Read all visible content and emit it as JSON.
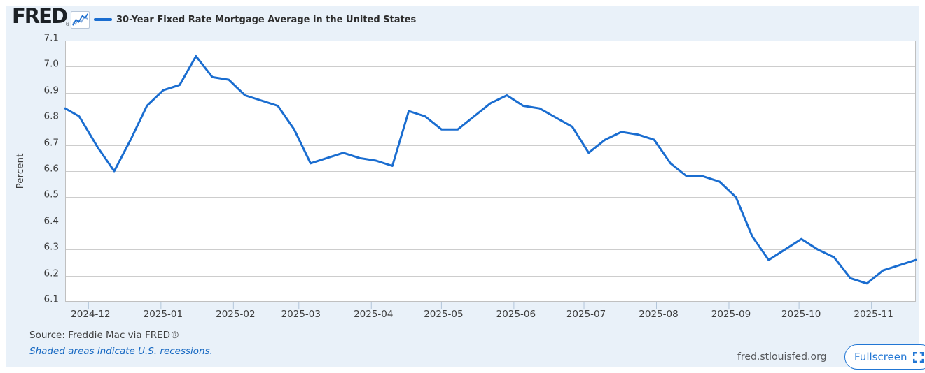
{
  "colors": {
    "accent": "#1a6dd0",
    "link_blue": "#1668c2",
    "button_blue": "#2176d4",
    "panel_bg": "#e9f1f9",
    "gridline": "#cdcdcd",
    "plot_border": "#c0c0c0",
    "tick_mark": "#b3c6da",
    "axis_text": "#3c3c3c"
  },
  "header": {
    "logo_text": "FRED",
    "registered_mark": "®",
    "series_title": "30-Year Fixed Rate Mortgage Average in the United States"
  },
  "chart_data": {
    "type": "line",
    "title": "30-Year Fixed Rate Mortgage Average in the United States",
    "xlabel": "",
    "ylabel": "Percent",
    "ylim": [
      6.1,
      7.1
    ],
    "y_tick_labels": [
      "7.1",
      "7.0",
      "6.9",
      "6.8",
      "6.7",
      "6.6",
      "6.5",
      "6.4",
      "6.3",
      "6.2",
      "6.1"
    ],
    "grid": "horizontal",
    "legend_position": "top",
    "line_color": "#1a6dd0",
    "x_range": [
      "2024-11-21",
      "2025-11-20"
    ],
    "x_ticks": [
      {
        "label": "2024-12",
        "date": "2024-12-01"
      },
      {
        "label": "2025-01",
        "date": "2025-01-01"
      },
      {
        "label": "2025-02",
        "date": "2025-02-01"
      },
      {
        "label": "2025-03",
        "date": "2025-03-01"
      },
      {
        "label": "2025-04",
        "date": "2025-04-01"
      },
      {
        "label": "2025-05",
        "date": "2025-05-01"
      },
      {
        "label": "2025-06",
        "date": "2025-06-01"
      },
      {
        "label": "2025-07",
        "date": "2025-07-01"
      },
      {
        "label": "2025-08",
        "date": "2025-08-01"
      },
      {
        "label": "2025-09",
        "date": "2025-09-01"
      },
      {
        "label": "2025-10",
        "date": "2025-10-01"
      },
      {
        "label": "2025-11",
        "date": "2025-11-01"
      }
    ],
    "series": [
      {
        "name": "30-Year Fixed Rate Mortgage Average in the United States",
        "dates": [
          "2024-11-21",
          "2024-11-27",
          "2024-12-05",
          "2024-12-12",
          "2024-12-19",
          "2024-12-26",
          "2025-01-02",
          "2025-01-09",
          "2025-01-16",
          "2025-01-23",
          "2025-01-30",
          "2025-02-06",
          "2025-02-13",
          "2025-02-20",
          "2025-02-27",
          "2025-03-06",
          "2025-03-13",
          "2025-03-20",
          "2025-03-27",
          "2025-04-03",
          "2025-04-10",
          "2025-04-17",
          "2025-04-24",
          "2025-05-01",
          "2025-05-08",
          "2025-05-15",
          "2025-05-22",
          "2025-05-29",
          "2025-06-05",
          "2025-06-12",
          "2025-06-18",
          "2025-06-26",
          "2025-07-03",
          "2025-07-10",
          "2025-07-17",
          "2025-07-24",
          "2025-07-31",
          "2025-08-07",
          "2025-08-14",
          "2025-08-21",
          "2025-08-28",
          "2025-09-04",
          "2025-09-11",
          "2025-09-18",
          "2025-09-25",
          "2025-10-02",
          "2025-10-09",
          "2025-10-16",
          "2025-10-23",
          "2025-10-30",
          "2025-11-06",
          "2025-11-13",
          "2025-11-20"
        ],
        "values": [
          6.84,
          6.81,
          6.69,
          6.6,
          6.72,
          6.85,
          6.91,
          6.93,
          7.04,
          6.96,
          6.95,
          6.89,
          6.87,
          6.85,
          6.76,
          6.63,
          6.65,
          6.67,
          6.65,
          6.64,
          6.62,
          6.83,
          6.81,
          6.76,
          6.76,
          6.81,
          6.86,
          6.89,
          6.85,
          6.84,
          6.81,
          6.77,
          6.67,
          6.72,
          6.75,
          6.74,
          6.72,
          6.63,
          6.58,
          6.58,
          6.56,
          6.5,
          6.35,
          6.26,
          6.3,
          6.34,
          6.3,
          6.27,
          6.19,
          6.17,
          6.22,
          6.24,
          6.26
        ]
      }
    ]
  },
  "footer": {
    "source": "Source: Freddie Mac via FRED®",
    "recession_note": "Shaded areas indicate U.S. recessions.",
    "site": "fred.stlouisfed.org",
    "fullscreen_label": "Fullscreen"
  }
}
